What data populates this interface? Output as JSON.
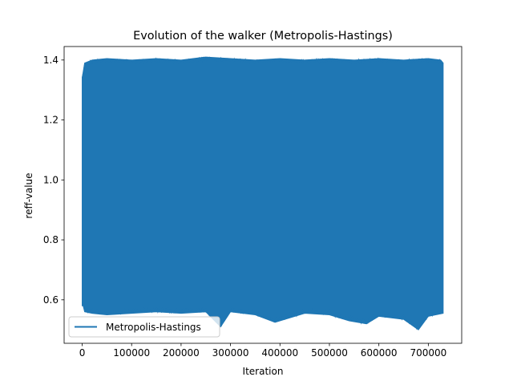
{
  "chart_data": {
    "type": "line",
    "title": "Evolution of the walker (Metropolis-Hastings)",
    "xlabel": "Iteration",
    "ylabel": "reff-value",
    "xlim": [
      -36500,
      767500
    ],
    "ylim": [
      0.455,
      1.445
    ],
    "xticks": [
      0,
      100000,
      200000,
      300000,
      400000,
      500000,
      600000,
      700000
    ],
    "xtick_labels": [
      "0",
      "100000",
      "200000",
      "300000",
      "400000",
      "500000",
      "600000",
      "700000"
    ],
    "yticks": [
      0.6,
      0.8,
      1.0,
      1.2,
      1.4
    ],
    "ytick_labels": [
      "0.6",
      "0.8",
      "1.0",
      "1.2",
      "1.4"
    ],
    "grid": false,
    "legend_position": "lower left",
    "series": [
      {
        "name": "Metropolis-Hastings",
        "color": "#1f77b4",
        "x_range": [
          0,
          730000
        ],
        "upper_envelope": [
          [
            0,
            1.34
          ],
          [
            2000,
            1.36
          ],
          [
            5000,
            1.39
          ],
          [
            20000,
            1.4
          ],
          [
            50000,
            1.405
          ],
          [
            100000,
            1.4
          ],
          [
            150000,
            1.405
          ],
          [
            200000,
            1.4
          ],
          [
            250000,
            1.41
          ],
          [
            300000,
            1.405
          ],
          [
            350000,
            1.4
          ],
          [
            400000,
            1.405
          ],
          [
            450000,
            1.4
          ],
          [
            500000,
            1.405
          ],
          [
            550000,
            1.4
          ],
          [
            600000,
            1.405
          ],
          [
            650000,
            1.4
          ],
          [
            700000,
            1.405
          ],
          [
            725000,
            1.4
          ],
          [
            730000,
            1.39
          ]
        ],
        "lower_envelope": [
          [
            0,
            0.58
          ],
          [
            2000,
            0.58
          ],
          [
            5000,
            0.56
          ],
          [
            20000,
            0.555
          ],
          [
            50000,
            0.55
          ],
          [
            100000,
            0.555
          ],
          [
            150000,
            0.56
          ],
          [
            200000,
            0.555
          ],
          [
            250000,
            0.56
          ],
          [
            280000,
            0.51
          ],
          [
            300000,
            0.56
          ],
          [
            350000,
            0.55
          ],
          [
            390000,
            0.525
          ],
          [
            450000,
            0.555
          ],
          [
            500000,
            0.55
          ],
          [
            540000,
            0.53
          ],
          [
            575000,
            0.52
          ],
          [
            600000,
            0.545
          ],
          [
            650000,
            0.535
          ],
          [
            680000,
            0.5
          ],
          [
            700000,
            0.545
          ],
          [
            730000,
            0.555
          ]
        ]
      }
    ]
  }
}
